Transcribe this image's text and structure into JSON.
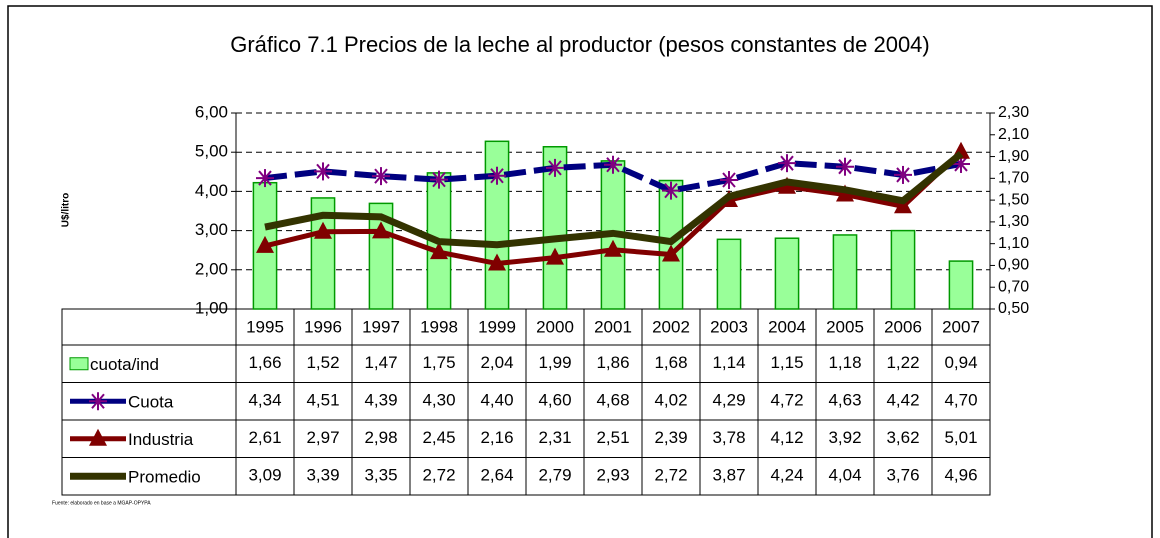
{
  "chart_data": {
    "type": "combo",
    "title": "Gráfico 7.1 Precios de la leche al productor (pesos constantes de 2004)",
    "ylabel": "U$/litro",
    "source": "Fuente: elaborado en base a MGAP-OPYPA",
    "categories": [
      "1995",
      "1996",
      "1997",
      "1998",
      "1999",
      "2000",
      "2001",
      "2002",
      "2003",
      "2004",
      "2005",
      "2006",
      "2007"
    ],
    "series": [
      {
        "name": "cuota/ind",
        "type": "bar",
        "axis": "y2",
        "color": "#99ff99",
        "values": [
          1.66,
          1.52,
          1.47,
          1.75,
          2.04,
          1.99,
          1.86,
          1.68,
          1.14,
          1.15,
          1.18,
          1.22,
          0.94
        ],
        "value_labels": [
          "1,66",
          "1,52",
          "1,47",
          "1,75",
          "2,04",
          "1,99",
          "1,86",
          "1,68",
          "1,14",
          "1,15",
          "1,18",
          "1,22",
          "0,94"
        ]
      },
      {
        "name": "Cuota",
        "type": "line",
        "marker": "star",
        "color": "#000080",
        "values": [
          4.34,
          4.51,
          4.39,
          4.3,
          4.4,
          4.6,
          4.68,
          4.02,
          4.29,
          4.72,
          4.63,
          4.42,
          4.7
        ],
        "value_labels": [
          "4,34",
          "4,51",
          "4,39",
          "4,30",
          "4,40",
          "4,60",
          "4,68",
          "4,02",
          "4,29",
          "4,72",
          "4,63",
          "4,42",
          "4,70"
        ]
      },
      {
        "name": "Industria",
        "type": "line",
        "marker": "triangle",
        "color": "#800000",
        "values": [
          2.61,
          2.97,
          2.98,
          2.45,
          2.16,
          2.31,
          2.51,
          2.39,
          3.78,
          4.12,
          3.92,
          3.62,
          5.01
        ],
        "value_labels": [
          "2,61",
          "2,97",
          "2,98",
          "2,45",
          "2,16",
          "2,31",
          "2,51",
          "2,39",
          "3,78",
          "4,12",
          "3,92",
          "3,62",
          "5,01"
        ]
      },
      {
        "name": "Promedio",
        "type": "line",
        "marker": "none",
        "color": "#333300",
        "values": [
          3.09,
          3.39,
          3.35,
          2.72,
          2.64,
          2.79,
          2.93,
          2.72,
          3.87,
          4.24,
          4.04,
          3.76,
          4.96
        ],
        "value_labels": [
          "3,09",
          "3,39",
          "3,35",
          "2,72",
          "2,64",
          "2,79",
          "2,93",
          "2,72",
          "3,87",
          "4,24",
          "4,04",
          "3,76",
          "4,96"
        ]
      }
    ],
    "ylim": [
      1,
      6
    ],
    "yticks": [
      {
        "value": 1,
        "label": "1,00"
      },
      {
        "value": 2,
        "label": "2,00"
      },
      {
        "value": 3,
        "label": "3,00"
      },
      {
        "value": 4,
        "label": "4,00"
      },
      {
        "value": 5,
        "label": "5,00"
      },
      {
        "value": 6,
        "label": "6,00"
      }
    ],
    "y2lim": [
      0.5,
      2.3
    ],
    "y2ticks": [
      {
        "value": 0.5,
        "label": "0,50"
      },
      {
        "value": 0.7,
        "label": "0,70"
      },
      {
        "value": 0.9,
        "label": "0,90"
      },
      {
        "value": 1.1,
        "label": "1,10"
      },
      {
        "value": 1.3,
        "label": "1,30"
      },
      {
        "value": 1.5,
        "label": "1,50"
      },
      {
        "value": 1.7,
        "label": "1,70"
      },
      {
        "value": 1.9,
        "label": "1,90"
      },
      {
        "value": 2.1,
        "label": "2,10"
      },
      {
        "value": 2.3,
        "label": "2,30"
      }
    ],
    "grid": true
  }
}
